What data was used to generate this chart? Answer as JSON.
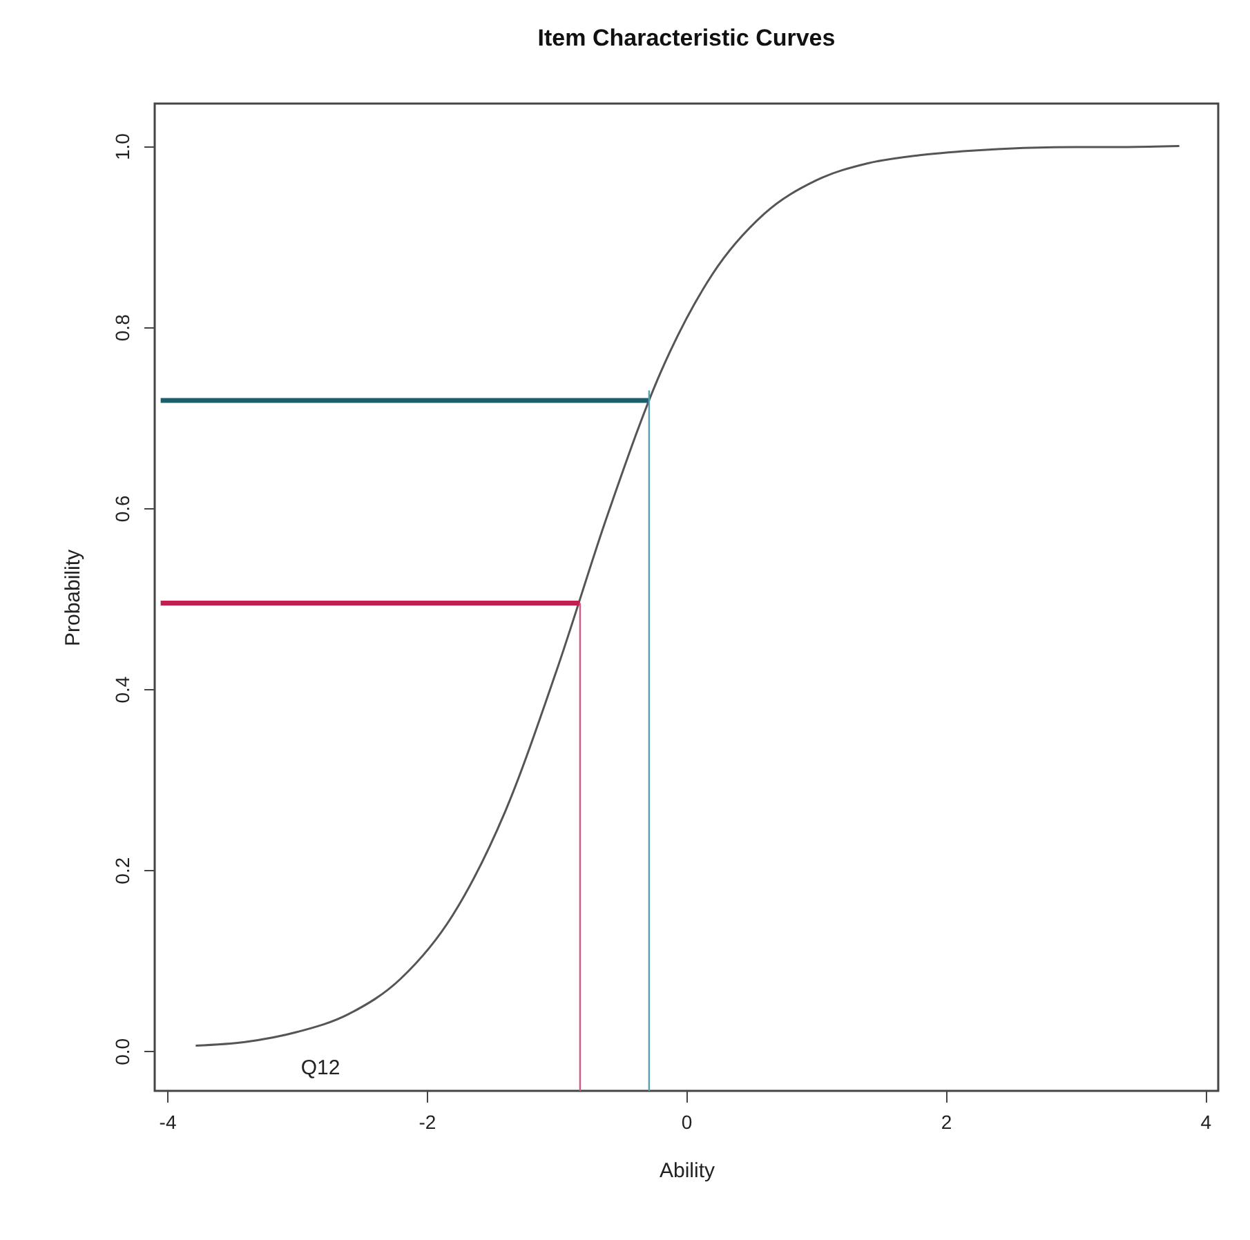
{
  "chart_data": {
    "type": "line",
    "title": "Item Characteristic Curves",
    "xlabel": "Ability",
    "ylabel": "Probability",
    "xlim": [
      -4.096,
      4.1
    ],
    "ylim": [
      -0.044,
      1.047
    ],
    "xticks": [
      -4,
      -2,
      0,
      2,
      4
    ],
    "yticks": [
      {
        "value": 0,
        "label": "0.0"
      },
      0.2,
      0.4,
      0.6,
      0.8,
      {
        "value": 1,
        "label": "1.0"
      }
    ],
    "grid": false,
    "marker": "none",
    "line_style": "solid",
    "series": [
      {
        "color": "#555555",
        "x": [
          -3.78,
          -3.4,
          -3.0,
          -2.6,
          -2.2,
          -1.8,
          -1.4,
          -1.0,
          -0.6,
          -0.2,
          0.2,
          0.6,
          1.0,
          1.4,
          1.8,
          2.2,
          2.6,
          3.0,
          3.4,
          3.8
        ],
        "values": [
          0.006,
          0.01,
          0.021,
          0.041,
          0.08,
          0.15,
          0.263,
          0.42,
          0.595,
          0.749,
          0.858,
          0.925,
          0.962,
          0.981,
          0.99,
          0.995,
          0.998,
          0.999,
          0.999,
          1.0
        ]
      },
      {
        "color": "#1b5e6e",
        "x": [
          -4.05,
          -0.286
        ],
        "values": [
          0.719,
          0.719
        ]
      },
      {
        "color": "#5a9fb0",
        "x": [
          -0.286,
          -0.286
        ],
        "values": [
          -0.044,
          0.73
        ]
      },
      {
        "color": "#c0204f",
        "x": [
          -4.05,
          -0.818
        ],
        "values": [
          0.495,
          0.495
        ]
      },
      {
        "color": "#d45a80",
        "x": [
          -0.818,
          -0.818
        ],
        "values": [
          -0.044,
          0.495
        ]
      }
    ],
    "annotations": [
      "Q12"
    ]
  }
}
